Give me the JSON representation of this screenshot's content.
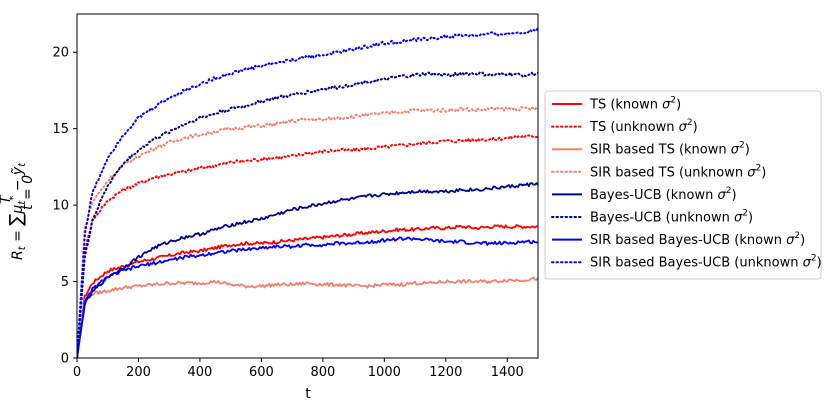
{
  "chart_data": {
    "type": "line",
    "xlabel": "t",
    "ylabel_parts": {
      "lhs": "R",
      "sub_t": "t",
      "eq": " = ",
      "sum": "∑",
      "sum_top": "T",
      "sum_bottom": "t = 0",
      "mu": "μ",
      "sup_star": "*",
      "minus": " − ",
      "yhat": "ỹ"
    },
    "xlim": [
      0,
      1500
    ],
    "ylim": [
      0,
      22.5
    ],
    "xticks": [
      0,
      200,
      400,
      600,
      800,
      1000,
      1200,
      1400
    ],
    "yticks": [
      0,
      5,
      10,
      15,
      20
    ],
    "legend_position": "right, outside plot",
    "x": [
      0,
      25,
      50,
      100,
      150,
      200,
      250,
      300,
      350,
      400,
      450,
      500,
      550,
      600,
      650,
      700,
      750,
      800,
      850,
      900,
      950,
      1000,
      1050,
      1100,
      1150,
      1200,
      1250,
      1300,
      1350,
      1400,
      1450,
      1500
    ],
    "series": [
      {
        "name_main": "TS (known ",
        "name_sym": "σ",
        "name_sup": "2",
        "name_end": ")",
        "color": "#ff0000",
        "style": "solid",
        "values": [
          0,
          4.0,
          4.9,
          5.7,
          6.0,
          6.3,
          6.5,
          6.7,
          6.9,
          7.0,
          7.2,
          7.4,
          7.5,
          7.5,
          7.6,
          7.7,
          7.8,
          7.9,
          8.0,
          8.1,
          8.2,
          8.3,
          8.4,
          8.4,
          8.5,
          8.5,
          8.6,
          8.5,
          8.6,
          8.6,
          8.6,
          8.6
        ]
      },
      {
        "name_main": "TS (unknown ",
        "name_sym": "σ",
        "name_sup": "2",
        "name_end": ")",
        "color": "#ff0000",
        "style": "dotted",
        "values": [
          0,
          7.0,
          9.0,
          10.3,
          11.0,
          11.4,
          11.8,
          12.0,
          12.2,
          12.4,
          12.6,
          12.8,
          12.9,
          13.0,
          13.1,
          13.2,
          13.4,
          13.5,
          13.6,
          13.6,
          13.7,
          13.8,
          13.9,
          14.0,
          14.1,
          14.2,
          14.2,
          14.3,
          14.3,
          14.4,
          14.5,
          14.5
        ]
      },
      {
        "name_main": "SIR based TS (known ",
        "name_sym": "σ",
        "name_sup": "2",
        "name_end": ")",
        "color": "#f08070",
        "style": "solid",
        "values": [
          0,
          3.8,
          4.2,
          4.4,
          4.6,
          4.7,
          4.8,
          4.9,
          4.9,
          4.9,
          5.0,
          4.8,
          4.7,
          4.7,
          4.8,
          4.8,
          4.9,
          4.8,
          4.8,
          4.7,
          4.7,
          4.8,
          4.8,
          4.9,
          4.9,
          5.0,
          5.0,
          5.0,
          5.0,
          5.1,
          5.1,
          5.2
        ]
      },
      {
        "name_main": "SIR based TS (unknown ",
        "name_sym": "σ",
        "name_sup": "2",
        "name_end": ")",
        "color": "#f08070",
        "style": "dotted",
        "values": [
          0,
          8.5,
          10.2,
          11.6,
          12.6,
          13.2,
          13.7,
          14.1,
          14.4,
          14.6,
          14.8,
          15.0,
          15.1,
          15.2,
          15.3,
          15.5,
          15.6,
          15.6,
          15.7,
          15.8,
          15.9,
          16.0,
          16.1,
          16.2,
          16.2,
          16.2,
          16.3,
          16.2,
          16.3,
          16.3,
          16.3,
          16.3
        ]
      },
      {
        "name_main": "Bayes-UCB (known ",
        "name_sym": "σ",
        "name_sup": "2",
        "name_end": ")",
        "color": "#00008b",
        "style": "solid",
        "values": [
          0,
          3.5,
          4.3,
          5.3,
          5.9,
          6.6,
          7.2,
          7.6,
          7.9,
          8.1,
          8.4,
          8.7,
          8.9,
          9.1,
          9.4,
          9.7,
          9.9,
          10.1,
          10.3,
          10.4,
          10.6,
          10.7,
          10.8,
          10.9,
          10.9,
          10.9,
          11.0,
          11.0,
          11.1,
          11.2,
          11.3,
          11.4
        ]
      },
      {
        "name_main": "Bayes-UCB (unknown ",
        "name_sym": "σ",
        "name_sup": "2",
        "name_end": ")",
        "color": "#00008b",
        "style": "dotted",
        "values": [
          0,
          6.5,
          9.0,
          11.3,
          12.7,
          13.6,
          14.3,
          14.8,
          15.3,
          15.7,
          16.0,
          16.3,
          16.5,
          16.8,
          17.0,
          17.2,
          17.4,
          17.6,
          17.7,
          17.9,
          18.1,
          18.2,
          18.4,
          18.5,
          18.6,
          18.5,
          18.6,
          18.6,
          18.5,
          18.6,
          18.5,
          18.6
        ]
      },
      {
        "name_main": "SIR based Bayes-UCB (known ",
        "name_sym": "σ",
        "name_sup": "2",
        "name_end": ")",
        "color": "#0000ff",
        "style": "solid",
        "values": [
          0,
          3.6,
          4.5,
          5.3,
          5.7,
          6.0,
          6.2,
          6.4,
          6.6,
          6.7,
          6.9,
          7.0,
          7.1,
          7.2,
          7.3,
          7.3,
          7.4,
          7.4,
          7.5,
          7.5,
          7.6,
          7.7,
          7.8,
          7.8,
          7.7,
          7.6,
          7.6,
          7.5,
          7.5,
          7.5,
          7.6,
          7.6
        ]
      },
      {
        "name_main": "SIR based Bayes-UCB (unknown ",
        "name_sym": "σ",
        "name_sup": "2",
        "name_end": ")",
        "color": "#0000ff",
        "style": "dotted",
        "values": [
          0,
          8.0,
          10.8,
          13.1,
          14.6,
          15.7,
          16.4,
          17.0,
          17.5,
          17.9,
          18.3,
          18.6,
          18.9,
          19.1,
          19.3,
          19.5,
          19.7,
          19.8,
          20.0,
          20.2,
          20.4,
          20.6,
          20.7,
          20.8,
          20.9,
          21.0,
          21.1,
          21.1,
          21.2,
          21.2,
          21.3,
          21.5
        ]
      }
    ]
  }
}
